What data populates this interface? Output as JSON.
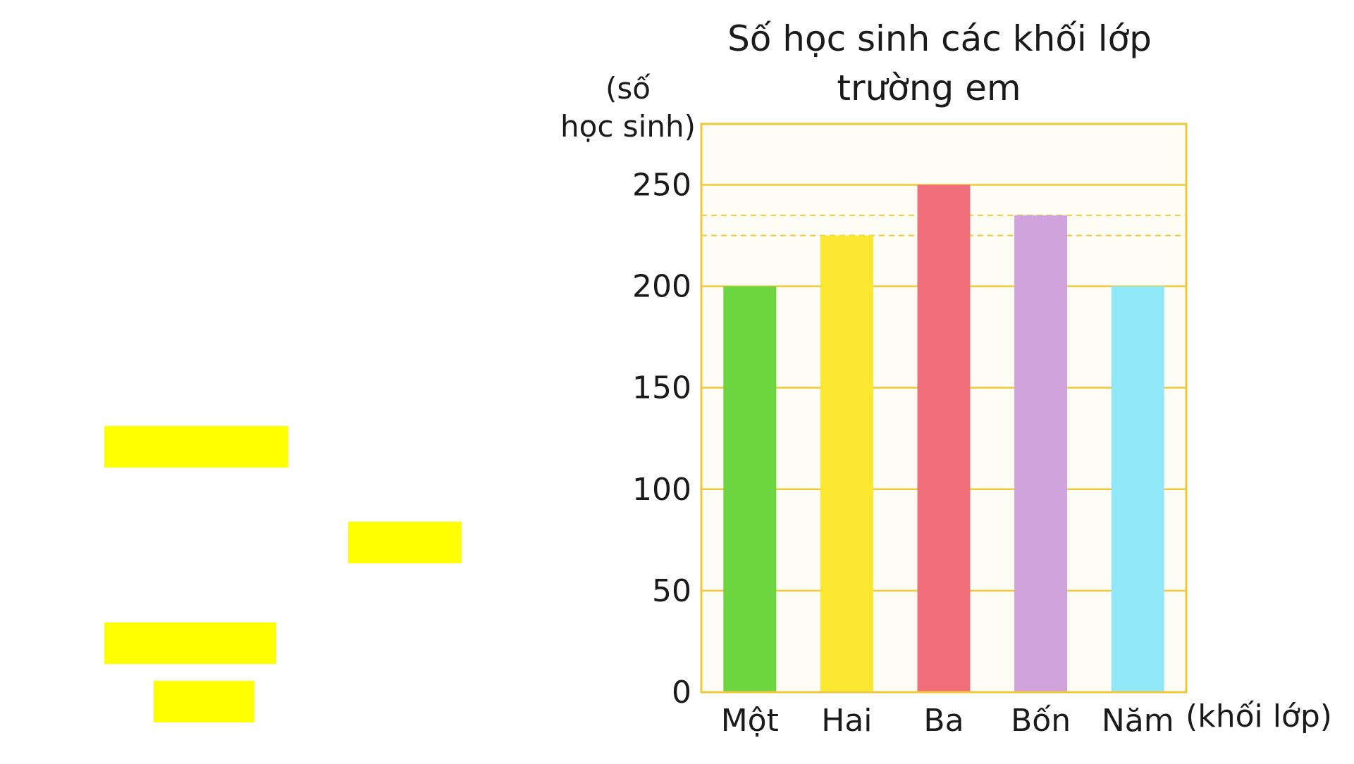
{
  "chart_data": {
    "type": "bar",
    "title_line1": "Số học sinh các khối lớp",
    "title_line2": "trường em",
    "ylabel_line1": "(số",
    "ylabel_line2": "học sinh)",
    "xlabel": "(khối lớp)",
    "categories": [
      "Một",
      "Hai",
      "Ba",
      "Bốn",
      "Năm"
    ],
    "values": [
      200,
      225,
      250,
      235,
      200
    ],
    "ylim": [
      0,
      280
    ],
    "yticks": [
      0,
      50,
      100,
      150,
      200,
      250
    ],
    "grid": true,
    "colors": [
      "#6cd540",
      "#fde831",
      "#f06e7a",
      "#d1a3dc",
      "#8fe7f8"
    ],
    "plot_background": "#fefdf5",
    "grid_color": "#f0c93a",
    "reference_lines": [
      225,
      235
    ]
  },
  "highlight_color": "#ffff00"
}
